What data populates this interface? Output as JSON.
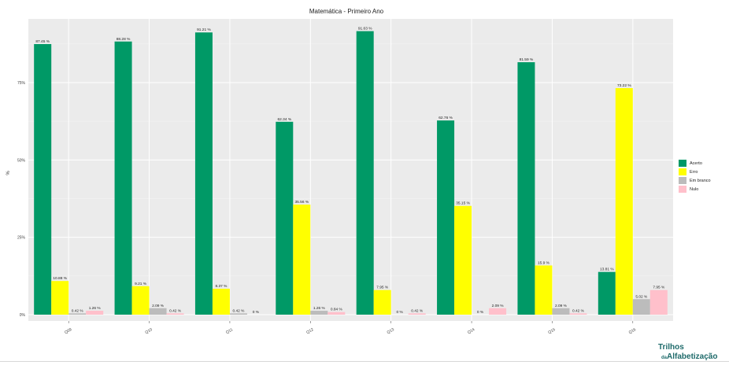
{
  "chart_data": {
    "type": "bar",
    "title": "Matemática - Primeiro Ano",
    "xlabel": "",
    "ylabel": "%",
    "ylim": [
      0,
      100
    ],
    "yticks": [
      0,
      25,
      50,
      75
    ],
    "ytick_labels": [
      "0%",
      "25%",
      "50%",
      "75%"
    ],
    "categories": [
      "Q09",
      "Q10",
      "Q11",
      "Q12",
      "Q13",
      "Q14",
      "Q15",
      "Q16"
    ],
    "series": [
      {
        "name": "Acerto",
        "color": "#009966",
        "values": [
          87.45,
          88.28,
          91.21,
          62.34,
          91.63,
          62.76,
          81.59,
          13.81
        ],
        "labels": [
          "87.45 %",
          "88.28 %",
          "91.21 %",
          "62.34 %",
          "91.63 %",
          "62.76 %",
          "81.59 %",
          "13.81 %"
        ]
      },
      {
        "name": "Erro",
        "color": "#ffff00",
        "values": [
          10.88,
          9.21,
          8.37,
          35.56,
          7.95,
          35.15,
          15.9,
          73.22
        ],
        "labels": [
          "10.88 %",
          "9.21 %",
          "8.37 %",
          "35.56 %",
          "7.95 %",
          "35.15 %",
          "15.9 %",
          "73.22 %"
        ]
      },
      {
        "name": "Em branco",
        "color": "#bcbcbc",
        "values": [
          0.42,
          2.09,
          0.42,
          1.26,
          0,
          0,
          2.09,
          5.02
        ],
        "labels": [
          "0.42 %",
          "2.09 %",
          "0.42 %",
          "1.26 %",
          "0 %",
          "0 %",
          "2.09 %",
          "5.02 %"
        ]
      },
      {
        "name": "Nulo",
        "color": "#ffc0cb",
        "values": [
          1.26,
          0.42,
          0,
          0.84,
          0.42,
          2.09,
          0.42,
          7.95
        ],
        "labels": [
          "1.26 %",
          "0.42 %",
          "0 %",
          "0.84 %",
          "0.42 %",
          "2.09 %",
          "0.42 %",
          "7.95 %"
        ]
      }
    ],
    "grid": true,
    "legend_position": "right"
  },
  "logo": {
    "line1": "Trilhos",
    "line2": "da",
    "line3": "Alfabetização"
  }
}
